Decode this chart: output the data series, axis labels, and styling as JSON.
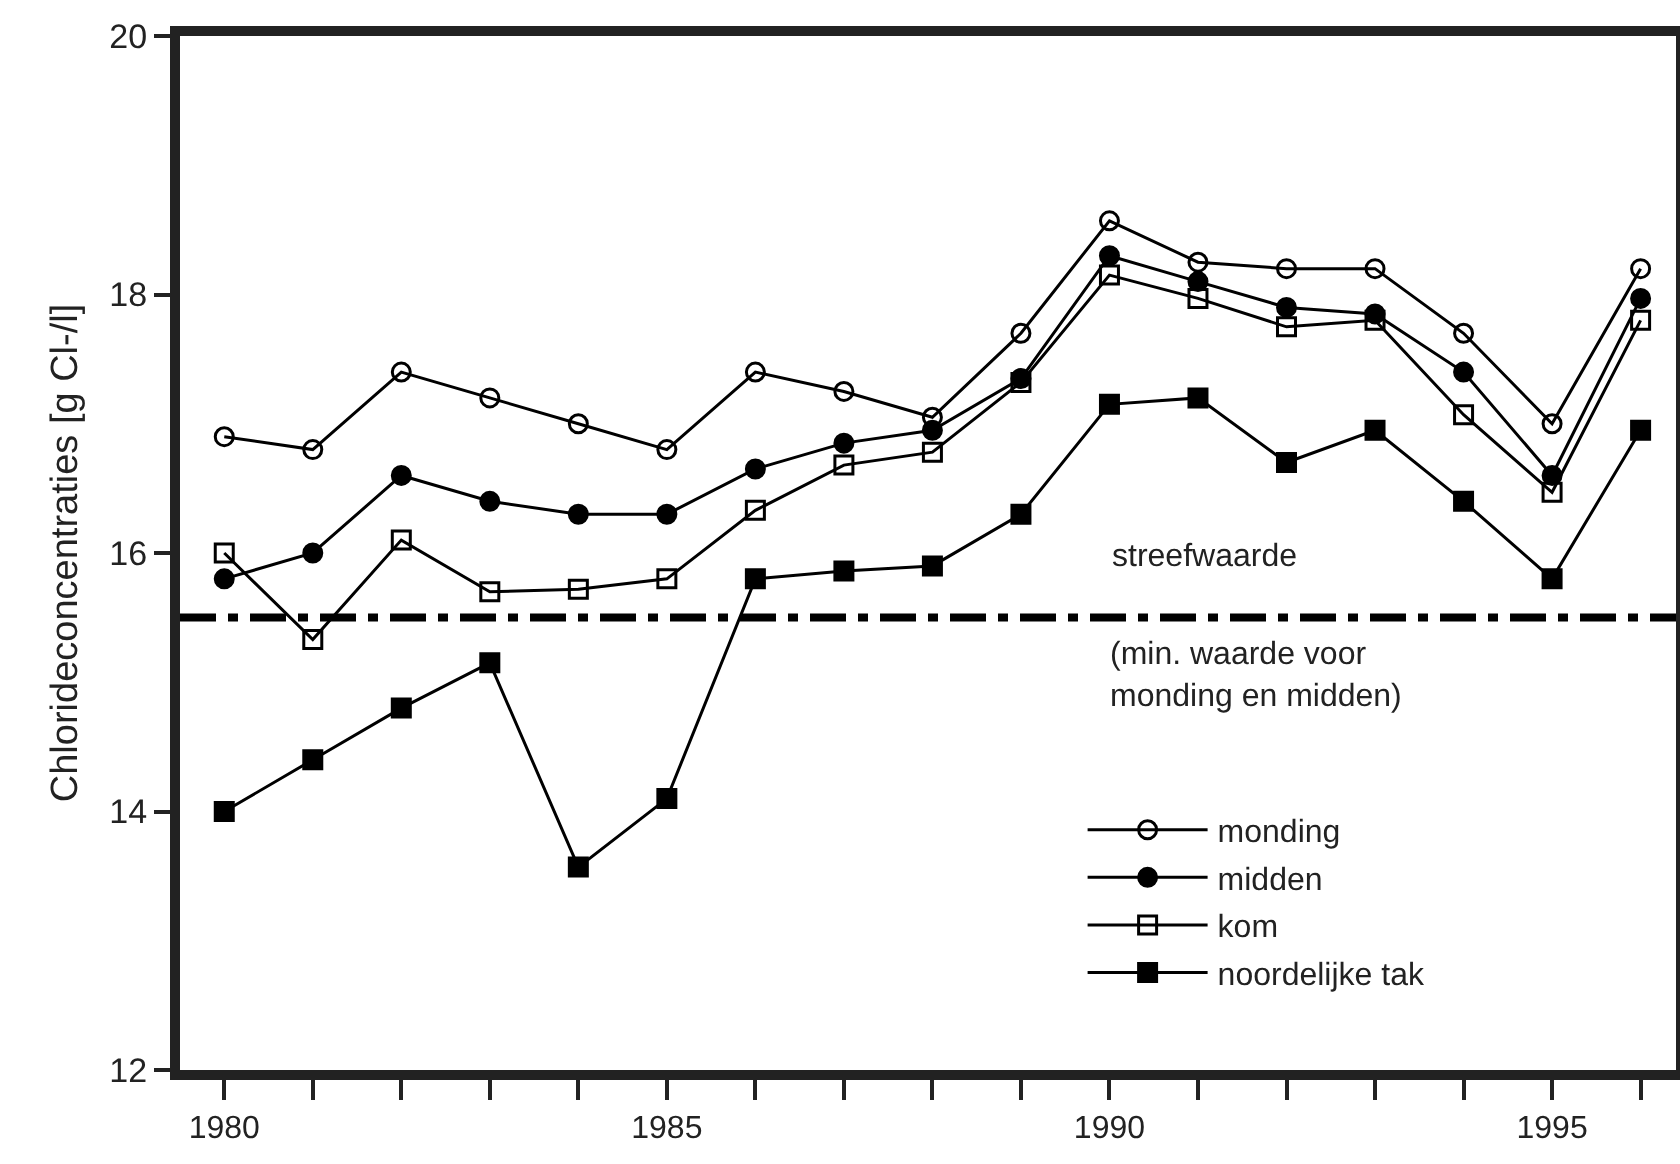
{
  "chart_data": {
    "type": "line",
    "ylabel": "Chlorideconcentraties [g Cl-/l]",
    "x": [
      1980,
      1981,
      1982,
      1983,
      1984,
      1985,
      1986,
      1987,
      1988,
      1989,
      1990,
      1991,
      1992,
      1993,
      1994,
      1995,
      1996
    ],
    "series": [
      {
        "name": "monding",
        "color": "#000000",
        "marker": "circle-open",
        "values": [
          16.9,
          16.8,
          17.4,
          17.2,
          17.0,
          16.8,
          17.4,
          17.25,
          17.05,
          17.7,
          18.57,
          18.25,
          18.2,
          18.2,
          17.7,
          17.0,
          18.2
        ]
      },
      {
        "name": "midden",
        "color": "#000000",
        "marker": "circle",
        "values": [
          15.8,
          16.0,
          16.6,
          16.4,
          16.3,
          16.3,
          16.65,
          16.85,
          16.95,
          17.35,
          18.3,
          18.1,
          17.9,
          17.85,
          17.4,
          16.6,
          17.97
        ]
      },
      {
        "name": "kom",
        "color": "#000000",
        "marker": "square-open",
        "values": [
          16.0,
          15.33,
          16.1,
          15.7,
          15.72,
          15.8,
          16.33,
          16.68,
          16.78,
          17.32,
          18.15,
          17.97,
          17.75,
          17.8,
          17.07,
          16.47,
          17.8
        ]
      },
      {
        "name": "noordelijke tak",
        "color": "#000000",
        "marker": "square",
        "values": [
          14.0,
          14.4,
          14.8,
          15.15,
          13.57,
          14.1,
          15.8,
          15.86,
          15.9,
          16.3,
          17.15,
          17.2,
          16.7,
          16.95,
          16.4,
          15.8,
          16.95
        ]
      }
    ],
    "xlim": [
      1979.5,
      1996.4
    ],
    "xticks": [
      1980,
      {
        "value": 1981,
        "label": null
      },
      {
        "value": 1982,
        "label": null
      },
      {
        "value": 1983,
        "label": null
      },
      {
        "value": 1984,
        "label": null
      },
      1985,
      {
        "value": 1986,
        "label": null
      },
      {
        "value": 1987,
        "label": null
      },
      {
        "value": 1988,
        "label": null
      },
      {
        "value": 1989,
        "label": null
      },
      1990,
      {
        "value": 1991,
        "label": null
      },
      {
        "value": 1992,
        "label": null
      },
      {
        "value": 1993,
        "label": null
      },
      {
        "value": 1994,
        "label": null
      },
      1995,
      {
        "value": 1996,
        "label": null
      }
    ],
    "ylim": [
      12,
      20
    ],
    "yticks": [
      12,
      14,
      16,
      18,
      20
    ],
    "ref_lines": [
      {
        "axis": "y",
        "value": 15.5,
        "label": "streefwaarde",
        "color": "#000000",
        "line_style": "dashed"
      }
    ],
    "annotations": [
      "(min. waarde voor\nmonding en midden)"
    ],
    "grid": false,
    "legend": "bottom right",
    "line_style": "solid"
  }
}
